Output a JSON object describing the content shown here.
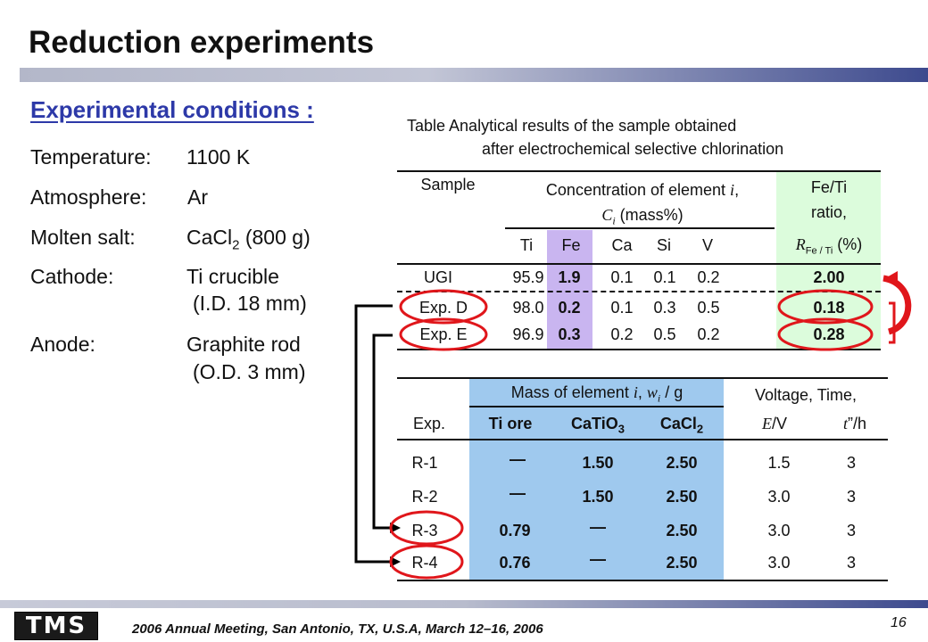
{
  "title": "Reduction experiments",
  "conditions": {
    "heading": "Experimental conditions :",
    "temperature_label": "Temperature:",
    "temperature_value": "1100 K",
    "atmosphere_label": "Atmosphere:",
    "atmosphere_value": "Ar",
    "salt_label": "Molten salt:",
    "salt_value_pre": "CaCl",
    "salt_value_sub": "2",
    "salt_value_post": " (800 g)",
    "cathode_label": "Cathode:",
    "cathode_value": "Ti crucible",
    "cathode_value2": "(I.D. 18 mm)",
    "anode_label": "Anode:",
    "anode_value": "Graphite rod",
    "anode_value2": "(O.D. 3 mm)"
  },
  "table1": {
    "caption_line1": "Table  Analytical results of the sample obtained",
    "caption_line2": "after electrochemical selective chlorination",
    "h_sample": "Sample",
    "h_conc_pre": "Concentration of element ",
    "h_conc_i": "i",
    "h_conc_ci": "C",
    "h_conc_ci_sub": "i",
    "h_conc_unit": " (mass%)",
    "h_ratio_1": "Fe/Ti",
    "h_ratio_2": "ratio,",
    "h_ratio_R": "R",
    "h_ratio_sub": "Fe / Ti",
    "h_ratio_unit": " (%)",
    "elements": [
      "Ti",
      "Fe",
      "Ca",
      "Si",
      "V"
    ],
    "rows": [
      {
        "sample": "UGI",
        "vals": [
          "95.9",
          "1.9",
          "0.1",
          "0.1",
          "0.2"
        ],
        "ratio": "2.00"
      },
      {
        "sample": "Exp. D",
        "vals": [
          "98.0",
          "0.2",
          "0.1",
          "0.3",
          "0.5"
        ],
        "ratio": "0.18"
      },
      {
        "sample": "Exp. E",
        "vals": [
          "96.9",
          "0.3",
          "0.2",
          "0.5",
          "0.2"
        ],
        "ratio": "0.28"
      }
    ]
  },
  "table2": {
    "h_mass_pre": "Mass of element ",
    "h_mass_i": "i",
    "h_mass_w": "w",
    "h_mass_w_sub": "i",
    "h_mass_unit": " / g",
    "h_vt": "Voltage, Time,",
    "h_exp": "Exp.",
    "h_tiore": "Ti ore",
    "h_catio": "CaTiO",
    "h_catio_sub": "3",
    "h_cacl": "CaCl",
    "h_cacl_sub": "2",
    "h_E": "E",
    "h_E_unit": "/V",
    "h_t": "t",
    "h_t_unit": "”/h",
    "rows": [
      {
        "exp": "R-1",
        "tiore": "—",
        "catio": "1.50",
        "cacl": "2.50",
        "v": "1.5",
        "t": "3"
      },
      {
        "exp": "R-2",
        "tiore": "—",
        "catio": "1.50",
        "cacl": "2.50",
        "v": "3.0",
        "t": "3"
      },
      {
        "exp": "R-3",
        "tiore": "0.79",
        "catio": "—",
        "cacl": "2.50",
        "v": "3.0",
        "t": "3"
      },
      {
        "exp": "R-4",
        "tiore": "0.76",
        "catio": "—",
        "cacl": "2.50",
        "v": "3.0",
        "t": "3"
      }
    ]
  },
  "footer": {
    "logo": "TMS",
    "text": "2006 Annual Meeting, San Antonio, TX, U.S.A, March 12–16, 2006",
    "page": "16"
  },
  "colors": {
    "heading_blue": "#2d39a8",
    "circle_red": "#e0161b",
    "ratio_green": "#dcfcdc",
    "fe_purple": "#c9b5f0",
    "mass_blue": "#9fc9ee"
  }
}
